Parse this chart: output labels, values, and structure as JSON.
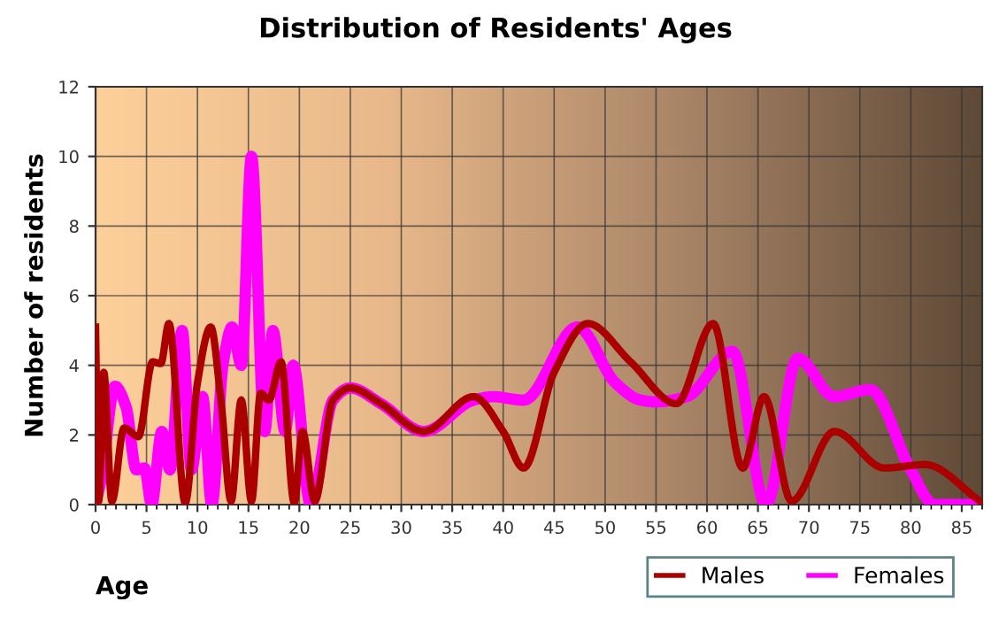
{
  "chart_data": {
    "type": "line",
    "title": "Distribution of Residents' Ages",
    "xlabel": "Age",
    "ylabel": "Number of residents",
    "xlim": [
      0,
      87
    ],
    "xticks": [
      0,
      5,
      10,
      15,
      20,
      25,
      30,
      35,
      40,
      45,
      50,
      55,
      60,
      65,
      70,
      75,
      80,
      85
    ],
    "ylim": [
      0,
      12
    ],
    "yticks": [
      0,
      2,
      4,
      6,
      8,
      10,
      12
    ],
    "grid": true,
    "legend": "bottom right",
    "series": [
      {
        "name": "Males",
        "color": "#aa0000",
        "x": [
          0,
          0.3,
          0.8,
          1.6,
          2.8,
          4.2,
          5.6,
          6.4,
          7.2,
          8.8,
          10,
          11.3,
          12.3,
          13.3,
          14.3,
          15.3,
          16.2,
          17,
          18.2,
          19.5,
          20.3,
          21.5,
          23.3,
          25,
          28,
          32.2,
          37.1,
          40,
          42,
          45,
          48.3,
          52.5,
          57,
          60.6,
          63.5,
          65.6,
          68.3,
          72.5,
          77.4,
          81.4,
          86.8
        ],
        "values": [
          5.1,
          0.1,
          3.8,
          0.1,
          2.2,
          1.95,
          4.1,
          4.05,
          5.2,
          0.05,
          3.5,
          5.1,
          3.0,
          0.1,
          3.0,
          0.1,
          3.2,
          3.0,
          4.1,
          0.05,
          2.1,
          0.1,
          3.0,
          3.35,
          2.9,
          2.1,
          3.1,
          2.1,
          1.05,
          3.8,
          5.2,
          4.1,
          2.9,
          5.2,
          1.05,
          3.1,
          0.1,
          2.1,
          1.05,
          1.15,
          0.1
        ]
      },
      {
        "name": "Females",
        "color": "#ff00ff",
        "x": [
          0,
          0.6,
          1.9,
          3,
          4,
          4.8,
          5.5,
          6.5,
          7.3,
          8.5,
          9.4,
          10.5,
          11.4,
          12.5,
          13.4,
          14.3,
          15.3,
          16.6,
          17.4,
          18.6,
          19.4,
          21.1,
          23.3,
          25,
          28,
          32.2,
          37.1,
          39,
          42,
          47.3,
          51,
          53.5,
          55,
          58,
          62.5,
          65.8,
          68.9,
          72.5,
          76,
          80,
          82.3,
          86.8
        ],
        "values": [
          0,
          0.8,
          3.4,
          2.8,
          1.0,
          1.05,
          0,
          2.1,
          1.0,
          5.0,
          1.0,
          3.1,
          0,
          4.0,
          5.1,
          4.0,
          10,
          2.1,
          5.0,
          2.1,
          4.0,
          0,
          3.0,
          3.35,
          2.9,
          2.1,
          3.0,
          3.1,
          3.0,
          5.1,
          3.5,
          3.0,
          2.95,
          3.1,
          4.4,
          0,
          4.2,
          3.1,
          3.3,
          1.0,
          0,
          0
        ]
      }
    ]
  }
}
